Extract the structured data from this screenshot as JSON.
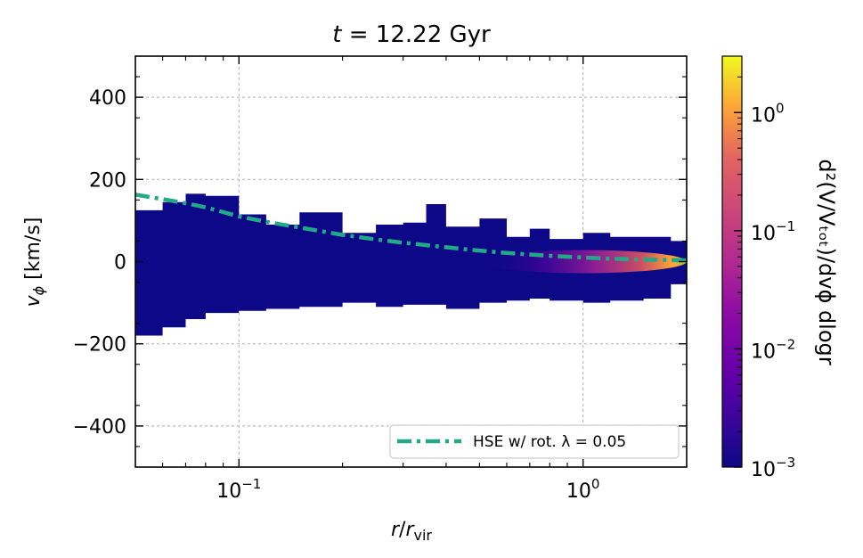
{
  "chart_data": {
    "type": "heatmap",
    "title": {
      "var": "t",
      "eq": " = ",
      "value": "12.22",
      "unit": " Gyr"
    },
    "xlabel": {
      "var": "r",
      "sep": "/",
      "base": "r",
      "sub": "vir"
    },
    "ylabel": {
      "var": "v",
      "sub": "ϕ",
      "unit": " [km/s]"
    },
    "x_scale": "log",
    "xlim": [
      0.05,
      2.0
    ],
    "ylim": [
      -500,
      500
    ],
    "y_ticks": [
      {
        "value": 400,
        "label": "400"
      },
      {
        "value": 200,
        "label": "200"
      },
      {
        "value": 0,
        "label": "0"
      },
      {
        "value": -200,
        "label": "−200"
      },
      {
        "value": -400,
        "label": "−400"
      }
    ],
    "x_ticks": [
      {
        "value": 0.1,
        "base": "10",
        "exp": "−1"
      },
      {
        "value": 1.0,
        "base": "10",
        "exp": "0"
      }
    ],
    "grid": true,
    "colormap": "plasma",
    "colorbar": {
      "scale": "log",
      "range": [
        0.001,
        3.0
      ],
      "ticks": [
        {
          "value": 1,
          "base": "10",
          "exp": "0"
        },
        {
          "value": 0.1,
          "base": "10",
          "exp": "−1"
        },
        {
          "value": 0.01,
          "base": "10",
          "exp": "−2"
        },
        {
          "value": 0.001,
          "base": "10",
          "exp": "−3"
        }
      ],
      "label": "d²(V/Vₜₒₜ)/dvϕ dlogr"
    },
    "density_envelope": {
      "x": [
        0.05,
        0.06,
        0.07,
        0.08,
        0.1,
        0.12,
        0.15,
        0.2,
        0.25,
        0.3,
        0.35,
        0.4,
        0.5,
        0.6,
        0.7,
        0.8,
        1.0,
        1.2,
        1.5,
        1.8,
        2.0
      ],
      "upper": [
        125,
        145,
        165,
        160,
        115,
        90,
        120,
        70,
        90,
        95,
        140,
        85,
        105,
        60,
        80,
        55,
        70,
        60,
        60,
        50,
        30
      ],
      "lower": [
        -180,
        -160,
        -140,
        -125,
        -120,
        -115,
        -110,
        -100,
        -110,
        -105,
        -105,
        -115,
        -100,
        -95,
        -90,
        -95,
        -100,
        -95,
        -90,
        -55,
        -25
      ]
    },
    "hot_region": {
      "x": [
        0.5,
        2.0
      ],
      "y_center": 0,
      "peak_x": 1.9
    },
    "series": [
      {
        "name": "HSE w/ rot. λ = 0.05",
        "style": "dash-dot",
        "color": "#22aa88",
        "x": [
          0.05,
          0.06,
          0.07,
          0.08,
          0.1,
          0.12,
          0.15,
          0.2,
          0.25,
          0.3,
          0.4,
          0.5,
          0.6,
          0.8,
          1.0,
          1.2,
          1.5,
          2.0
        ],
        "y": [
          163,
          152,
          142,
          132,
          110,
          97,
          83,
          65,
          54,
          46,
          35,
          27,
          21,
          14,
          10,
          7,
          5,
          3
        ]
      }
    ],
    "legend": {
      "placement": "lower-right",
      "label": "HSE w/ rot. λ = 0.05"
    }
  }
}
